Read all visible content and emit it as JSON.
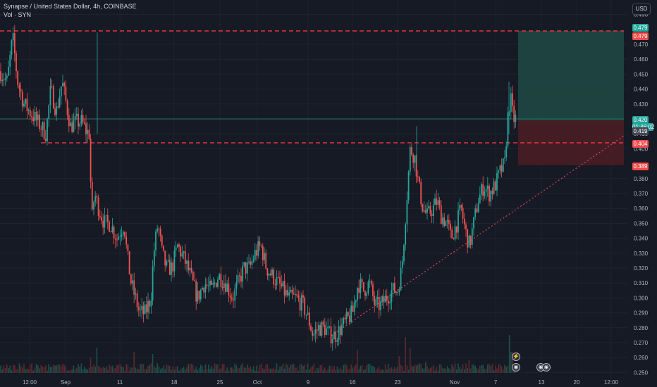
{
  "header": {
    "title": "Synapse / United States Dollar, 4h, COINBASE",
    "volume_label": "Vol · SYN"
  },
  "price_scale": {
    "currency": "USD",
    "ticks": [
      "0.490",
      "0.470",
      "0.460",
      "0.450",
      "0.440",
      "0.430",
      "0.410",
      "0.400",
      "0.380",
      "0.370",
      "0.360",
      "0.350",
      "0.340",
      "0.330",
      "0.320",
      "0.310",
      "0.300",
      "0.290",
      "0.280",
      "0.270",
      "0.260",
      "0.250"
    ],
    "badges": [
      {
        "name": "target-price-badge",
        "text": "0.479",
        "color": "#ef4b4b",
        "price": 0.479
      },
      {
        "name": "take-profit-badge",
        "text": "0.479",
        "color": "#26a69a",
        "price": 0.479
      },
      {
        "name": "last-price-badge",
        "text": "0.420",
        "color": "#26a69a",
        "price": 0.42,
        "countdown": "01:46:02"
      },
      {
        "name": "entry-price-badge",
        "text": "0.419",
        "color": "#434651",
        "price": 0.419
      },
      {
        "name": "support-price-badge",
        "text": "0.404",
        "color": "#ef4b4b",
        "price": 0.404
      },
      {
        "name": "stop-loss-badge",
        "text": "0.389",
        "color": "#ef4b4b",
        "price": 0.389
      }
    ]
  },
  "time_axis": {
    "ticks": [
      "12:00",
      "Sep",
      "11",
      "18",
      "25",
      "Oct",
      "9",
      "16",
      "23",
      "Nov",
      "7",
      "13",
      "20",
      "12:00"
    ]
  },
  "colors": {
    "background": "#161a25",
    "up": "#26a69a",
    "down": "#ef5350",
    "level_line": "#f23645",
    "profit_zone": "#1e4a44",
    "loss_zone": "#4c1f25",
    "trendline": "#e0435a"
  },
  "chart_data": {
    "type": "candlestick",
    "interval": "4h",
    "y_range": [
      0.245,
      0.495
    ],
    "levels": [
      0.479,
      0.404
    ],
    "position": {
      "entry": 0.419,
      "take_profit": 0.479,
      "stop_loss": 0.389
    },
    "path": [
      [
        0,
        0.452
      ],
      [
        10,
        0.445
      ],
      [
        18,
        0.475
      ],
      [
        25,
        0.445
      ],
      [
        34,
        0.43
      ],
      [
        42,
        0.425
      ],
      [
        50,
        0.42
      ],
      [
        58,
        0.415
      ],
      [
        65,
        0.41
      ],
      [
        72,
        0.44
      ],
      [
        80,
        0.425
      ],
      [
        88,
        0.445
      ],
      [
        94,
        0.43
      ],
      [
        100,
        0.415
      ],
      [
        108,
        0.418
      ],
      [
        116,
        0.418
      ],
      [
        122,
        0.412
      ],
      [
        127,
        0.41
      ],
      [
        130,
        0.35
      ],
      [
        134,
        0.37
      ],
      [
        140,
        0.36
      ],
      [
        148,
        0.35
      ],
      [
        156,
        0.35
      ],
      [
        166,
        0.34
      ],
      [
        176,
        0.35
      ],
      [
        180,
        0.33
      ],
      [
        186,
        0.31
      ],
      [
        192,
        0.3
      ],
      [
        198,
        0.29
      ],
      [
        206,
        0.29
      ],
      [
        214,
        0.3
      ],
      [
        218,
        0.33
      ],
      [
        224,
        0.35
      ],
      [
        230,
        0.33
      ],
      [
        236,
        0.32
      ],
      [
        244,
        0.32
      ],
      [
        252,
        0.335
      ],
      [
        262,
        0.325
      ],
      [
        270,
        0.315
      ],
      [
        280,
        0.3
      ],
      [
        290,
        0.31
      ],
      [
        300,
        0.305
      ],
      [
        310,
        0.315
      ],
      [
        320,
        0.31
      ],
      [
        330,
        0.3
      ],
      [
        338,
        0.31
      ],
      [
        346,
        0.32
      ],
      [
        354,
        0.32
      ],
      [
        362,
        0.33
      ],
      [
        370,
        0.335
      ],
      [
        378,
        0.32
      ],
      [
        386,
        0.315
      ],
      [
        394,
        0.31
      ],
      [
        402,
        0.305
      ],
      [
        410,
        0.3
      ],
      [
        420,
        0.3
      ],
      [
        430,
        0.295
      ],
      [
        438,
        0.285
      ],
      [
        444,
        0.275
      ],
      [
        452,
        0.28
      ],
      [
        460,
        0.28
      ],
      [
        468,
        0.275
      ],
      [
        476,
        0.275
      ],
      [
        484,
        0.28
      ],
      [
        492,
        0.285
      ],
      [
        500,
        0.29
      ],
      [
        508,
        0.31
      ],
      [
        516,
        0.305
      ],
      [
        524,
        0.31
      ],
      [
        532,
        0.295
      ],
      [
        540,
        0.295
      ],
      [
        548,
        0.3
      ],
      [
        556,
        0.305
      ],
      [
        564,
        0.305
      ],
      [
        570,
        0.32
      ],
      [
        576,
        0.36
      ],
      [
        582,
        0.4
      ],
      [
        588,
        0.395
      ],
      [
        594,
        0.375
      ],
      [
        600,
        0.36
      ],
      [
        606,
        0.355
      ],
      [
        614,
        0.36
      ],
      [
        620,
        0.365
      ],
      [
        626,
        0.355
      ],
      [
        634,
        0.35
      ],
      [
        640,
        0.34
      ],
      [
        648,
        0.35
      ],
      [
        654,
        0.36
      ],
      [
        660,
        0.345
      ],
      [
        666,
        0.335
      ],
      [
        672,
        0.35
      ],
      [
        678,
        0.365
      ],
      [
        686,
        0.375
      ],
      [
        694,
        0.37
      ],
      [
        702,
        0.375
      ],
      [
        710,
        0.385
      ],
      [
        716,
        0.39
      ],
      [
        720,
        0.42
      ],
      [
        724,
        0.435
      ],
      [
        728,
        0.42
      ],
      [
        732,
        0.42
      ]
    ]
  },
  "volume_data": {
    "spikes": [
      {
        "x": 128,
        "v": 0.35
      },
      {
        "x": 138,
        "v": 0.6
      },
      {
        "x": 190,
        "v": 0.5
      },
      {
        "x": 216,
        "v": 0.45
      },
      {
        "x": 506,
        "v": 0.55
      },
      {
        "x": 566,
        "v": 0.4
      },
      {
        "x": 576,
        "v": 0.85
      },
      {
        "x": 582,
        "v": 0.6
      },
      {
        "x": 604,
        "v": 0.25
      },
      {
        "x": 666,
        "v": 0.3
      },
      {
        "x": 722,
        "v": 0.9
      },
      {
        "x": 726,
        "v": 0.5
      }
    ]
  },
  "events": [
    {
      "name": "lightning-event-icon",
      "glyph": "⚡"
    },
    {
      "name": "us-flag-event-icon",
      "glyph": "◉"
    },
    {
      "name": "us-flag-event-icon-2",
      "glyph": "◉"
    },
    {
      "name": "us-flag-event-icon-3",
      "glyph": "◉"
    }
  ]
}
